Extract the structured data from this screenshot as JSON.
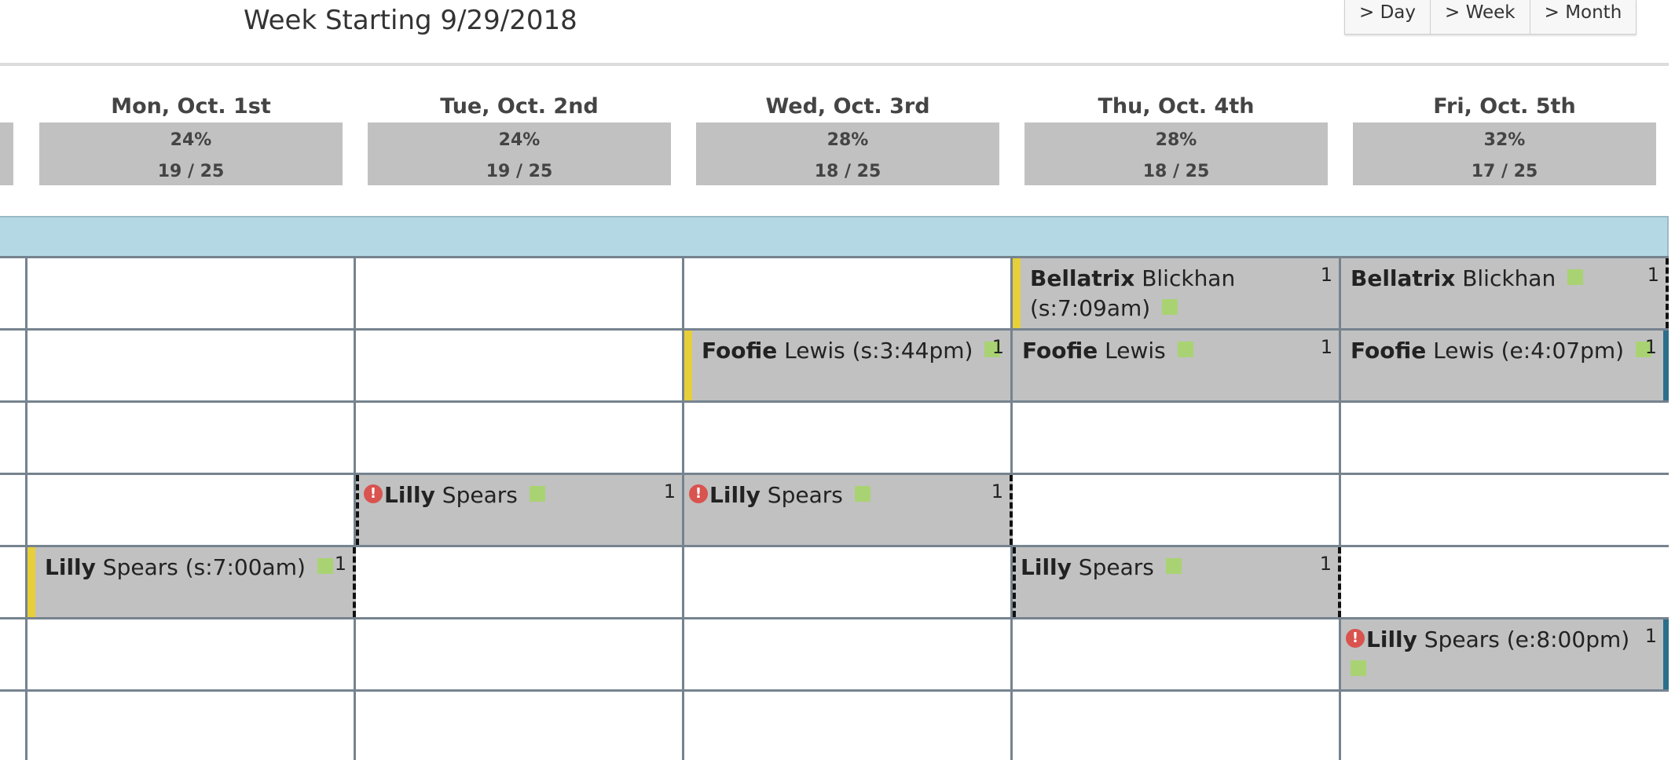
{
  "header": {
    "title": "Week Starting 9/29/2018",
    "view_buttons": [
      "> Day",
      "> Week",
      "> Month"
    ]
  },
  "days": [
    {
      "label": "Mon, Oct. 1st",
      "pct": "24%",
      "count": "19 / 25"
    },
    {
      "label": "Tue, Oct. 2nd",
      "pct": "24%",
      "count": "19 / 25"
    },
    {
      "label": "Wed, Oct. 3rd",
      "pct": "28%",
      "count": "18 / 25"
    },
    {
      "label": "Thu, Oct. 4th",
      "pct": "28%",
      "count": "18 / 25"
    },
    {
      "label": "Fri, Oct. 5th",
      "pct": "32%",
      "count": "17 / 25"
    }
  ],
  "events": [
    {
      "first": "Bellatrix",
      "last": "Blickhan",
      "note": " (s:7:09am)",
      "count": "1"
    },
    {
      "first": "Bellatrix",
      "last": "Blickhan",
      "note": "",
      "count": "1"
    },
    {
      "first": "Foofie",
      "last": "Lewis",
      "note": " (s:3:44pm)",
      "count": "1"
    },
    {
      "first": "Foofie",
      "last": "Lewis",
      "note": "",
      "count": "1"
    },
    {
      "first": "Foofie",
      "last": "Lewis",
      "note": " (e:4:07pm)",
      "count": "1"
    },
    {
      "first": "Lilly",
      "last": "Spears",
      "note": "",
      "count": "1",
      "warning": "!"
    },
    {
      "first": "Lilly",
      "last": "Spears",
      "note": "",
      "count": "1",
      "warning": "!"
    },
    {
      "first": "Lilly",
      "last": "Spears",
      "note": " (s:7:00am)",
      "count": "1"
    },
    {
      "first": "Lilly",
      "last": "Spears",
      "note": "",
      "count": "1"
    },
    {
      "first": "Lilly",
      "last": "Spears",
      "note": " (e:8:00pm)",
      "count": "1",
      "warning": "!"
    }
  ],
  "colors": {
    "stat_box": "#c1c1c1",
    "band": "#b4d8e4",
    "grid": "#76838f",
    "status_square": "#a9d372",
    "warning": "#d9534f",
    "start_marker": "#e6cf3a",
    "end_marker": "#2c6e8c"
  }
}
